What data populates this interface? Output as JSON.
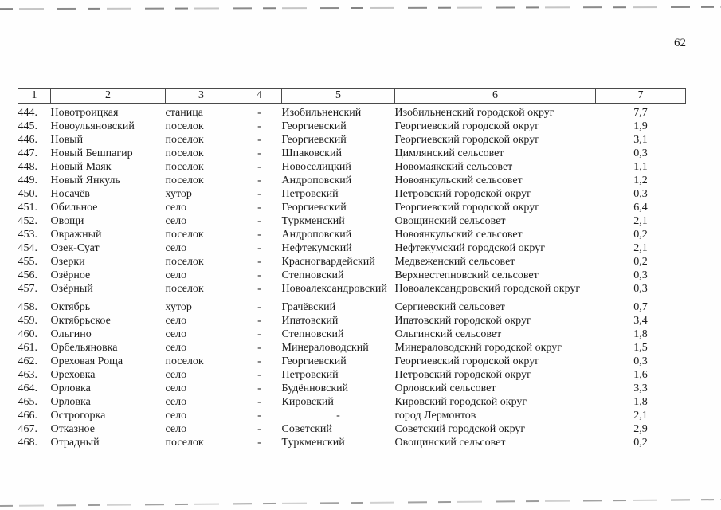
{
  "page": {
    "number": "62"
  },
  "table": {
    "headers": [
      "1",
      "2",
      "3",
      "4",
      "5",
      "6",
      "7"
    ],
    "columns": [
      {
        "key": "num"
      },
      {
        "key": "name"
      },
      {
        "key": "type"
      },
      {
        "key": "dash"
      },
      {
        "key": "district"
      },
      {
        "key": "municipal"
      },
      {
        "key": "value"
      }
    ],
    "groups": [
      {
        "rows": [
          {
            "num": "444.",
            "name": "Новотроицкая",
            "type": "станица",
            "dash": "-",
            "district": "Изобильненский",
            "municipal": "Изобильненский городской округ",
            "value": "7,7"
          },
          {
            "num": "445.",
            "name": "Новоульяновский",
            "type": "поселок",
            "dash": "-",
            "district": "Георгиевский",
            "municipal": "Георгиевский городской округ",
            "value": "1,9"
          },
          {
            "num": "446.",
            "name": "Новый",
            "type": "поселок",
            "dash": "-",
            "district": "Георгиевский",
            "municipal": "Георгиевский городской округ",
            "value": "3,1"
          },
          {
            "num": "447.",
            "name": "Новый Бешпагир",
            "type": "поселок",
            "dash": "-",
            "district": "Шпаковский",
            "municipal": "Цимлянский сельсовет",
            "value": "0,3"
          },
          {
            "num": "448.",
            "name": "Новый Маяк",
            "type": "поселок",
            "dash": "-",
            "district": "Новоселицкий",
            "municipal": "Новомаякский сельсовет",
            "value": "1,1"
          },
          {
            "num": "449.",
            "name": "Новый Янкуль",
            "type": "поселок",
            "dash": "-",
            "district": "Андроповский",
            "municipal": "Новоянкульский сельсовет",
            "value": "1,2"
          },
          {
            "num": "450.",
            "name": "Носачёв",
            "type": "хутор",
            "dash": "-",
            "district": "Петровский",
            "municipal": "Петровский городской округ",
            "value": "0,3"
          },
          {
            "num": "451.",
            "name": "Обильное",
            "type": "село",
            "dash": "-",
            "district": "Георгиевский",
            "municipal": "Георгиевский городской округ",
            "value": "6,4"
          },
          {
            "num": "452.",
            "name": "Овощи",
            "type": "село",
            "dash": "-",
            "district": "Туркменский",
            "municipal": "Овощинский сельсовет",
            "value": "2,1"
          },
          {
            "num": "453.",
            "name": "Овражный",
            "type": "поселок",
            "dash": "-",
            "district": "Андроповский",
            "municipal": "Новоянкульский сельсовет",
            "value": "0,2"
          },
          {
            "num": "454.",
            "name": "Озек-Суат",
            "type": "село",
            "dash": "-",
            "district": "Нефтекумский",
            "municipal": "Нефтекумский городской округ",
            "value": "2,1"
          },
          {
            "num": "455.",
            "name": "Озерки",
            "type": "поселок",
            "dash": "-",
            "district": "Красногвардейский",
            "municipal": "Медвеженский сельсовет",
            "value": "0,2"
          },
          {
            "num": "456.",
            "name": "Озёрное",
            "type": "село",
            "dash": "-",
            "district": "Степновский",
            "municipal": "Верхнестепновский сельсовет",
            "value": "0,3"
          },
          {
            "num": "457.",
            "name": "Озёрный",
            "type": "поселок",
            "dash": "-",
            "district": "Новоалександровский",
            "municipal": "Новоалександровский городской округ",
            "value": "0,3"
          }
        ]
      },
      {
        "rows": [
          {
            "num": "458.",
            "name": "Октябрь",
            "type": "хутор",
            "dash": "-",
            "district": "Грачёвский",
            "municipal": "Сергиевский сельсовет",
            "value": "0,7"
          },
          {
            "num": "459.",
            "name": "Октябрьское",
            "type": "село",
            "dash": "-",
            "district": "Ипатовский",
            "municipal": "Ипатовский городской округ",
            "value": "3,4"
          },
          {
            "num": "460.",
            "name": "Ольгино",
            "type": "село",
            "dash": "-",
            "district": "Степновский",
            "municipal": "Ольгинский сельсовет",
            "value": "1,8"
          },
          {
            "num": "461.",
            "name": "Орбельяновка",
            "type": "село",
            "dash": "-",
            "district": "Минераловодский",
            "municipal": "Минераловодский городской округ",
            "value": "1,5"
          },
          {
            "num": "462.",
            "name": "Ореховая Роща",
            "type": "поселок",
            "dash": "-",
            "district": "Георгиевский",
            "municipal": "Георгиевский городской округ",
            "value": "0,3"
          },
          {
            "num": "463.",
            "name": "Ореховка",
            "type": "село",
            "dash": "-",
            "district": "Петровский",
            "municipal": "Петровский городской округ",
            "value": "1,6"
          },
          {
            "num": "464.",
            "name": "Орловка",
            "type": "село",
            "dash": "-",
            "district": "Будённовский",
            "municipal": "Орловский сельсовет",
            "value": "3,3"
          },
          {
            "num": "465.",
            "name": "Орловка",
            "type": "село",
            "dash": "-",
            "district": "Кировский",
            "municipal": "Кировский городской округ",
            "value": "1,8"
          },
          {
            "num": "466.",
            "name": "Острогорка",
            "type": "село",
            "dash": "-",
            "district": "-",
            "municipal": "город Лермонтов",
            "value": "2,1"
          },
          {
            "num": "467.",
            "name": "Отказное",
            "type": "село",
            "dash": "-",
            "district": "Советский",
            "municipal": "Советский городской округ",
            "value": "2,9"
          },
          {
            "num": "468.",
            "name": "Отрадный",
            "type": "поселок",
            "dash": "-",
            "district": "Туркменский",
            "municipal": "Овощинский сельсовет",
            "value": "0,2"
          }
        ]
      }
    ]
  }
}
